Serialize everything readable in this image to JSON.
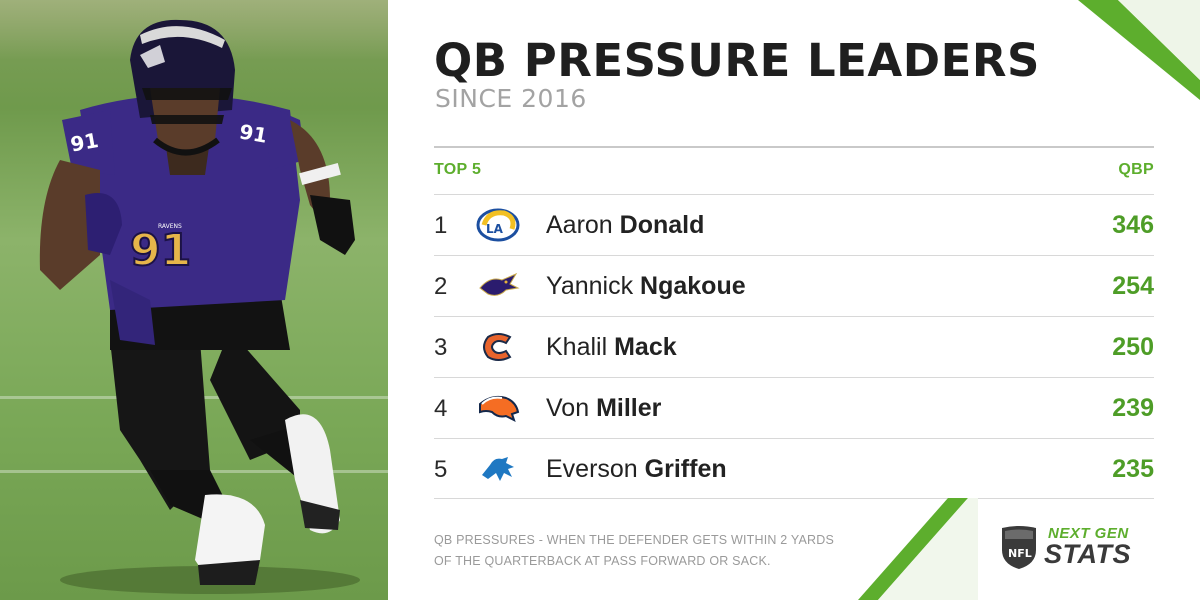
{
  "header": {
    "title": "QB PRESSURE LEADERS",
    "subtitle": "SINCE 2016"
  },
  "table": {
    "left_header": "TOP 5",
    "right_header": "QBP",
    "rows": [
      {
        "rank": "1",
        "team_logo": "rams-logo",
        "first": "Aaron",
        "last": "Donald",
        "value": "346"
      },
      {
        "rank": "2",
        "team_logo": "ravens-logo",
        "first": "Yannick",
        "last": "Ngakoue",
        "value": "254"
      },
      {
        "rank": "3",
        "team_logo": "bears-logo",
        "first": "Khalil",
        "last": "Mack",
        "value": "250"
      },
      {
        "rank": "4",
        "team_logo": "broncos-logo",
        "first": "Von",
        "last": "Miller",
        "value": "239"
      },
      {
        "rank": "5",
        "team_logo": "lions-logo",
        "first": "Everson",
        "last": "Griffen",
        "value": "235"
      }
    ]
  },
  "footnote": {
    "line1": "QB PRESSURES - WHEN THE DEFENDER GETS WITHIN 2 YARDS",
    "line2": "OF THE QUARTERBACK AT PASS FORWARD OR SACK."
  },
  "branding": {
    "nfl_label": "NFL",
    "top": "NEXT GEN",
    "bottom": "STATS"
  },
  "photo": {
    "jersey_number": "91",
    "jersey_team": "RAVENS"
  },
  "colors": {
    "accent_green": "#5dae2d",
    "value_green": "#4e9d27",
    "title": "#1f1f1f",
    "subtitle": "#a3a3a3",
    "ravens_purple": "#3b2a86"
  }
}
